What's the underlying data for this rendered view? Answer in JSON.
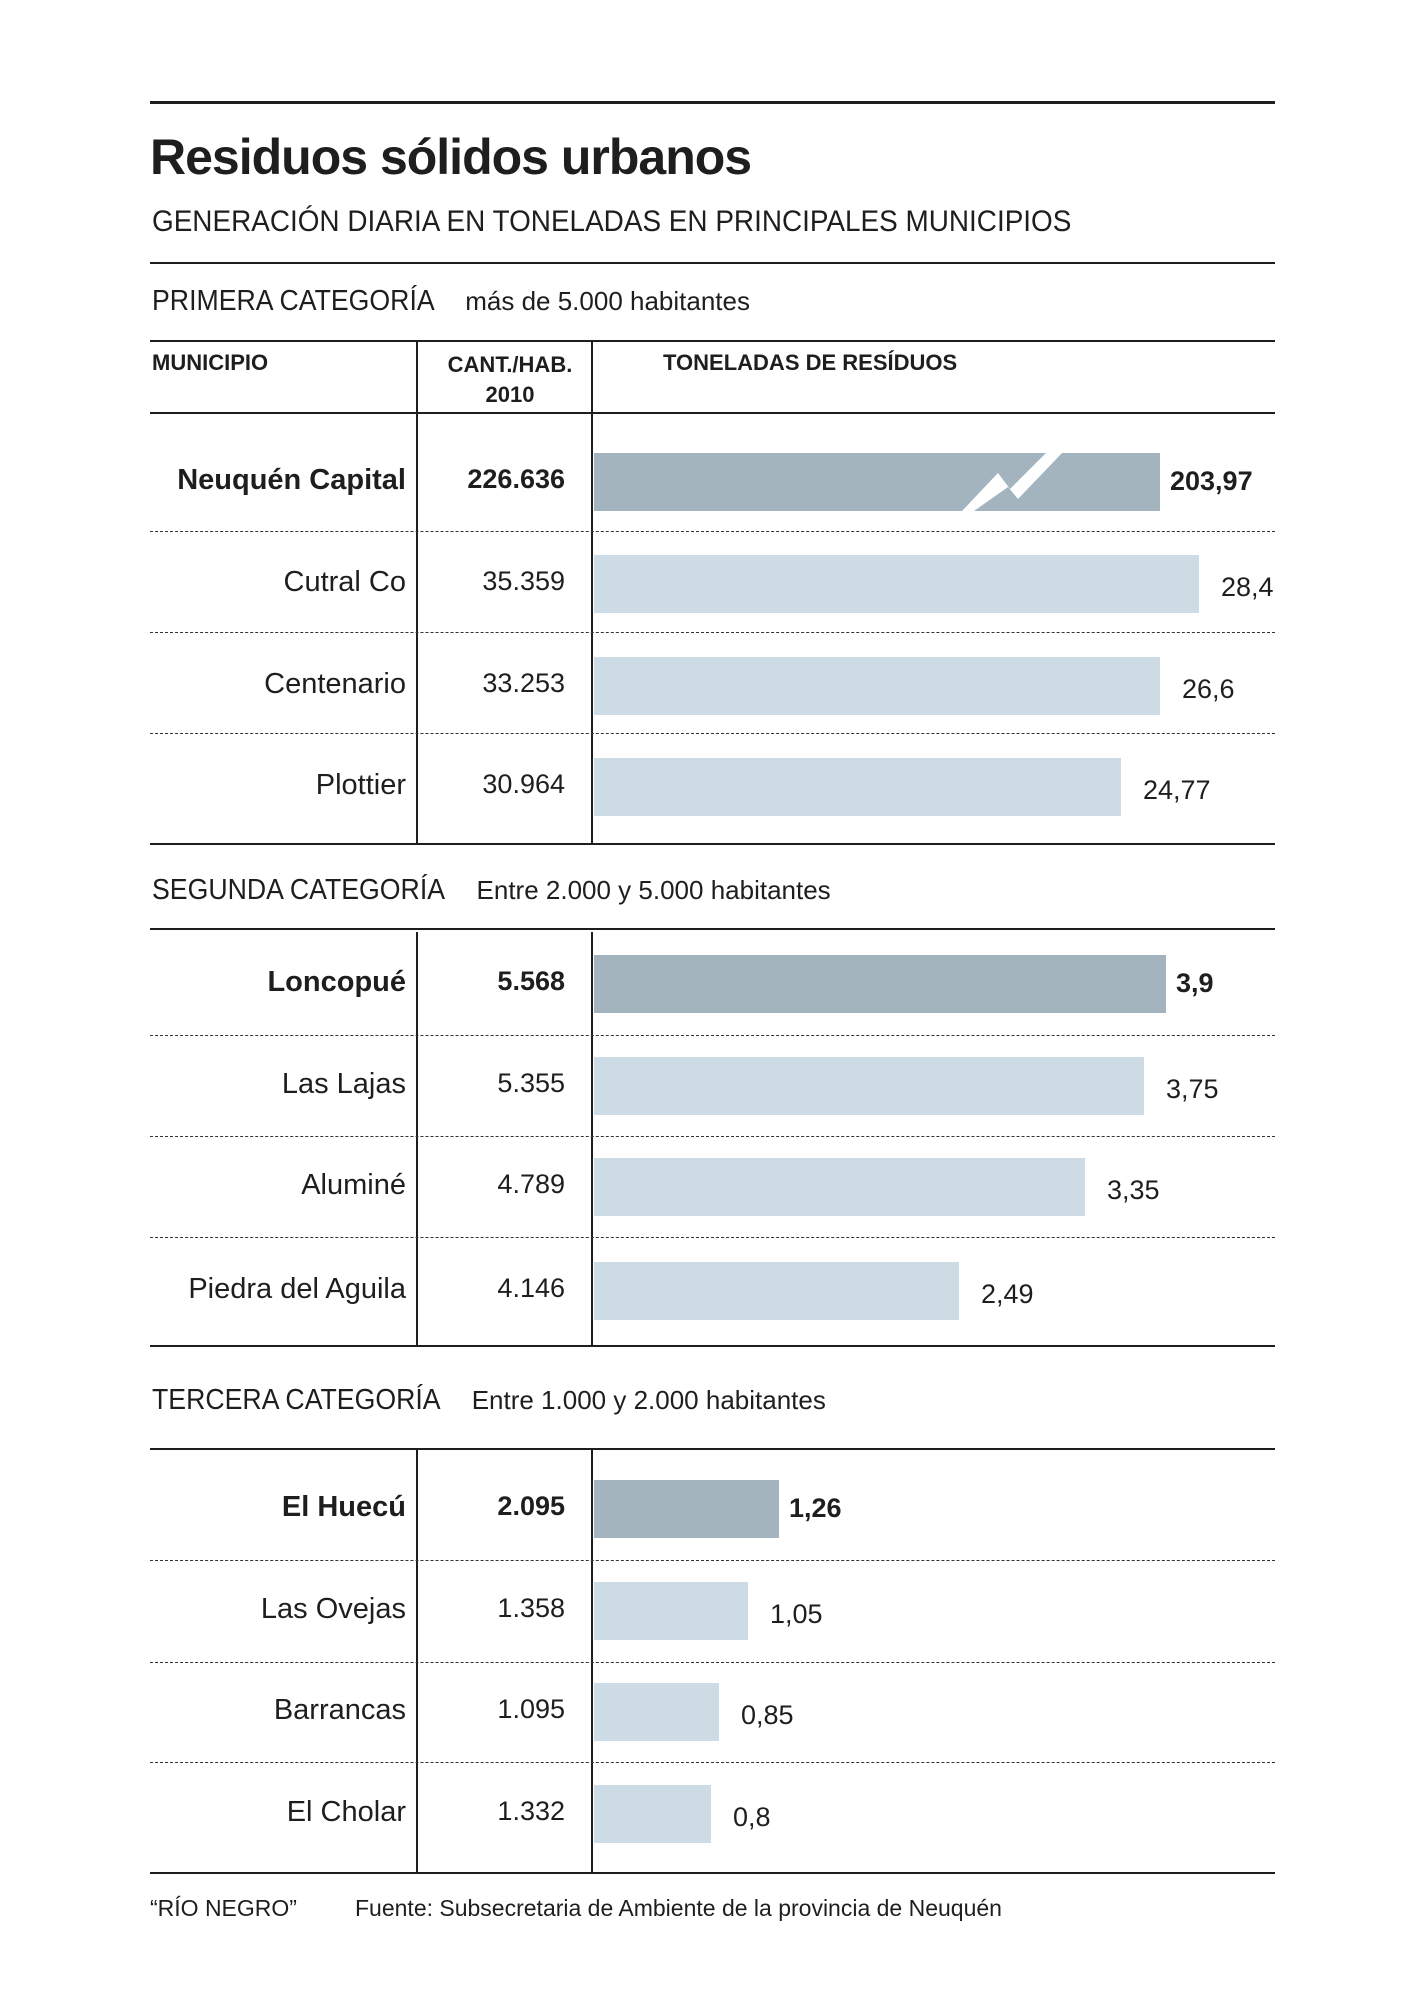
{
  "chart_data": {
    "type": "bar",
    "orientation": "horizontal",
    "title": "Residuos sólidos urbanos",
    "subtitle": "GENERACIÓN DIARIA EN TONELADAS EN PRINCIPALES MUNICIPIOS",
    "columns": {
      "municipio": "MUNICIPIO",
      "poblacion_line1": "CANT./HAB.",
      "poblacion_line2": "2010",
      "toneladas": "TONELADAS DE RESÍDUOS"
    },
    "groups": [
      {
        "name": "PRIMERA CATEGORÍA",
        "description": "más de 5.000 habitantes",
        "scale_max": 31,
        "rows": [
          {
            "municipio": "Neuquén Capital",
            "poblacion": "226.636",
            "value": 203.97,
            "label": "203,97",
            "highlight": true,
            "axis_break": true
          },
          {
            "municipio": "Cutral Co",
            "poblacion": "35.359",
            "value": 28.4,
            "label": "28,4",
            "highlight": false
          },
          {
            "municipio": "Centenario",
            "poblacion": "33.253",
            "value": 26.6,
            "label": "26,6",
            "highlight": false
          },
          {
            "municipio": "Plottier",
            "poblacion": "30.964",
            "value": 24.77,
            "label": "24,77",
            "highlight": false
          }
        ]
      },
      {
        "name": "SEGUNDA CATEGORÍA",
        "description": "Entre 2.000 y 5.000 habitantes",
        "scale_max": 4.5,
        "rows": [
          {
            "municipio": "Loncopué",
            "poblacion": "5.568",
            "value": 3.9,
            "label": "3,9",
            "highlight": true
          },
          {
            "municipio": "Las Lajas",
            "poblacion": "5.355",
            "value": 3.75,
            "label": "3,75",
            "highlight": false
          },
          {
            "municipio": "Aluminé",
            "poblacion": "4.789",
            "value": 3.35,
            "label": "3,35",
            "highlight": false
          },
          {
            "municipio": "Piedra del Aguila",
            "poblacion": "4.146",
            "value": 2.49,
            "label": "2,49",
            "highlight": false
          }
        ]
      },
      {
        "name": "TERCERA CATEGORÍA",
        "description": "Entre 1.000 y 2.000 habitantes",
        "scale_max": 4.5,
        "rows": [
          {
            "municipio": "El Huecú",
            "poblacion": "2.095",
            "value": 1.26,
            "label": "1,26",
            "highlight": true
          },
          {
            "municipio": "Las Ovejas",
            "poblacion": "1.358",
            "value": 1.05,
            "label": "1,05",
            "highlight": false
          },
          {
            "municipio": "Barrancas",
            "poblacion": "1.095",
            "value": 0.85,
            "label": "0,85",
            "highlight": false
          },
          {
            "municipio": "El Cholar",
            "poblacion": "1.332",
            "value": 0.8,
            "label": "0,8",
            "highlight": false
          }
        ]
      }
    ],
    "colors": {
      "highlight": "#a3b4bf",
      "normal": "#cddbe4"
    }
  },
  "footer": {
    "credit": "“RÍO NEGRO”",
    "source": "Fuente: Subsecretaria de Ambiente de la provincia de Neuquén"
  }
}
